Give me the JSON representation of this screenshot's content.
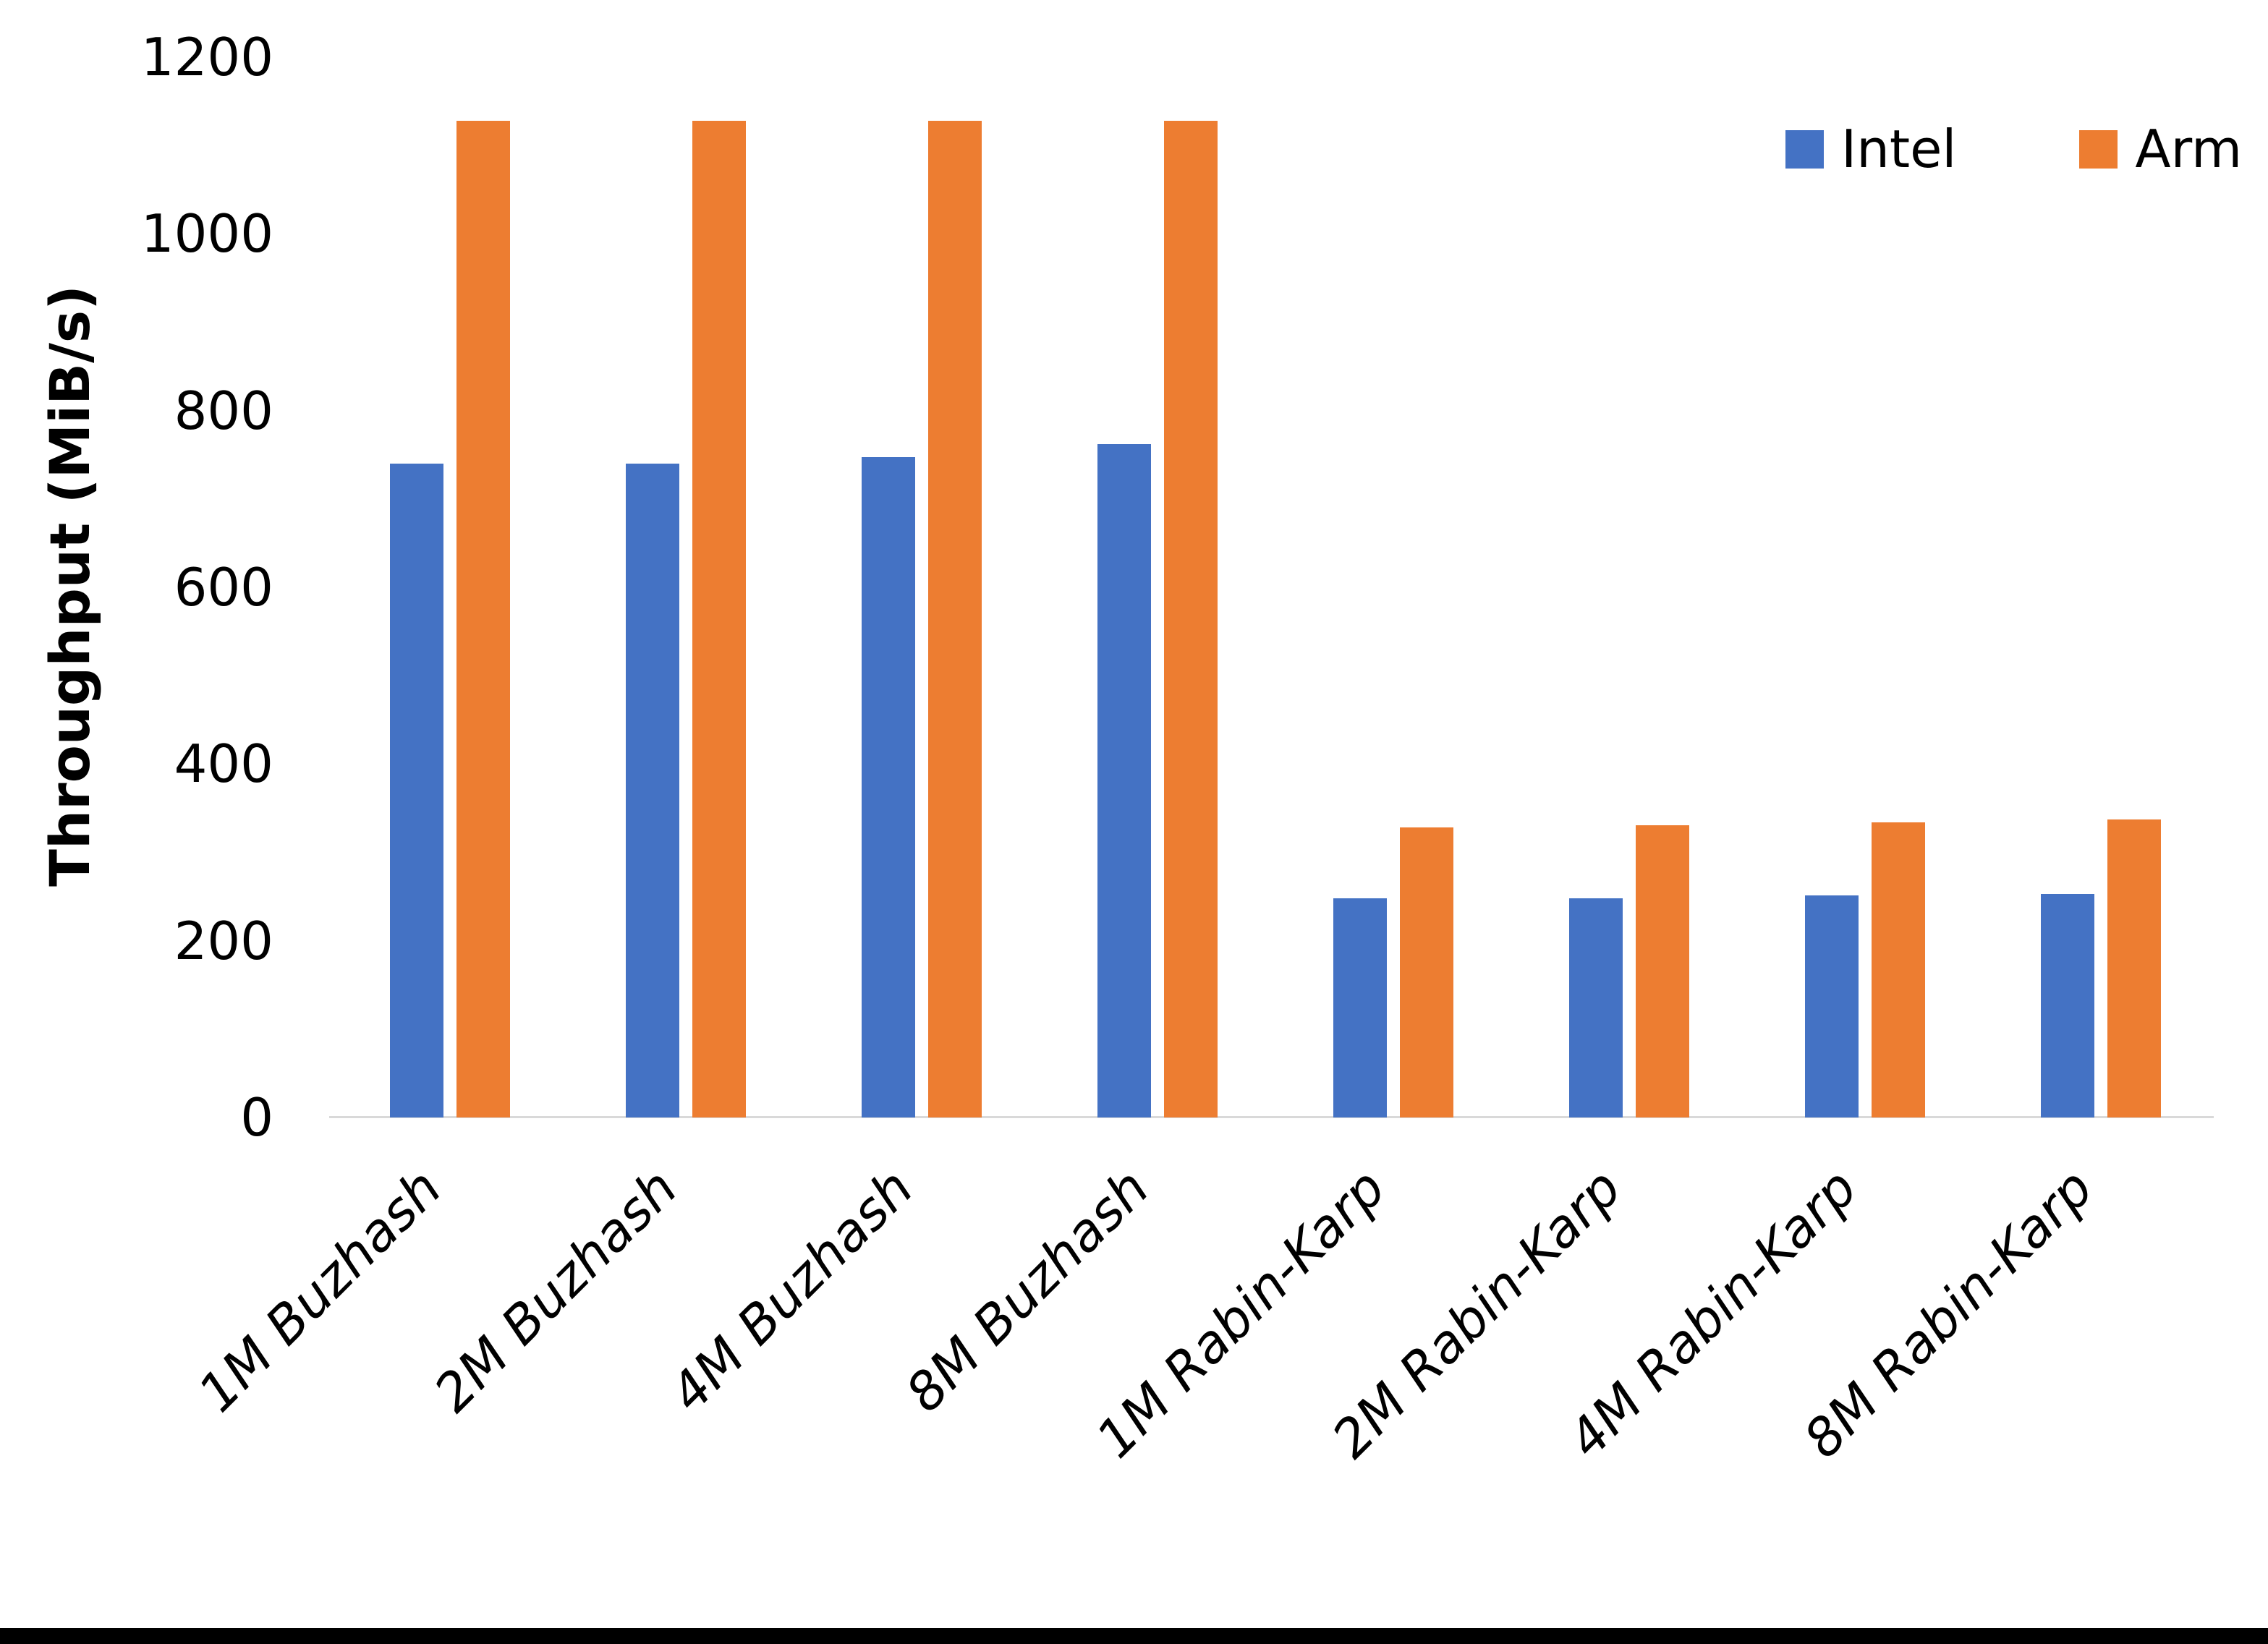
{
  "chart_data": {
    "type": "bar",
    "title": "",
    "xlabel": "",
    "ylabel": "Throughput (MiB/s)",
    "ylim": [
      0,
      1200
    ],
    "ytick_step": 200,
    "ytick_labels": [
      "0",
      "200",
      "400",
      "600",
      "800",
      "1000",
      "1200"
    ],
    "grid": false,
    "legend_position": "top-right",
    "categories": [
      "1M Buzhash",
      "2M Buzhash",
      "4M Buzhash",
      "8M Buzhash",
      "1M Rabin-Karp",
      "2M Rabin-Karp",
      "4M Rabin-Karp",
      "8M Rabin-Karp"
    ],
    "series": [
      {
        "name": "Intel",
        "color": "#4472C4",
        "values": [
          740,
          740,
          747,
          762,
          248,
          248,
          251,
          253
        ]
      },
      {
        "name": "Arm",
        "color": "#ED7D31",
        "values": [
          1128,
          1128,
          1128,
          1128,
          328,
          331,
          334,
          337
        ]
      }
    ]
  }
}
